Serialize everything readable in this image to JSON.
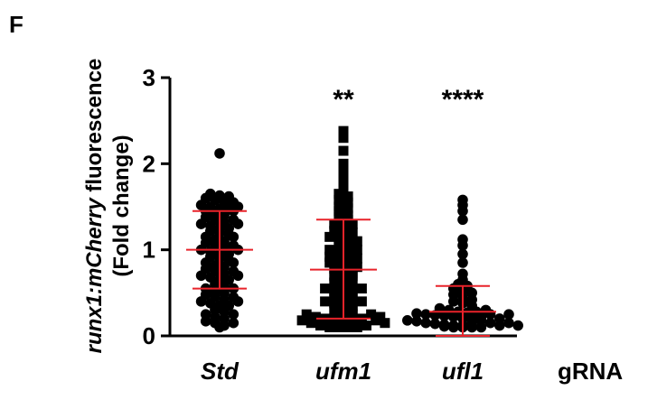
{
  "panel_label": "F",
  "chart_data": {
    "type": "scatter",
    "subtype": "dot-plot-with-mean-and-sd",
    "ylabel_italic": "runx1:mCherry",
    "ylabel_rest": " fluorescence",
    "ylabel_line2": "(Fold change)",
    "xlabel": "gRNA",
    "ylim": [
      0,
      3
    ],
    "yticks": [
      0,
      1,
      2,
      3
    ],
    "categories": [
      "Std",
      "ufm1",
      "ufl1"
    ],
    "significance": [
      "",
      "**",
      "****"
    ],
    "marker_shapes": [
      "circle",
      "square",
      "circle"
    ],
    "summary_color": "#e8232a",
    "groups": [
      {
        "name": "Std",
        "mean": 1.0,
        "sd_low": 0.55,
        "sd_high": 1.45,
        "points": [
          2.12,
          1.65,
          1.63,
          1.62,
          1.6,
          1.58,
          1.55,
          1.52,
          1.5,
          1.48,
          1.47,
          1.45,
          1.42,
          1.4,
          1.38,
          1.35,
          1.32,
          1.3,
          1.28,
          1.25,
          1.22,
          1.2,
          1.18,
          1.15,
          1.12,
          1.1,
          1.08,
          1.05,
          1.03,
          1.0,
          0.98,
          0.95,
          0.92,
          0.9,
          0.88,
          0.85,
          0.82,
          0.8,
          0.78,
          0.75,
          0.72,
          0.7,
          0.68,
          0.65,
          0.6,
          0.57,
          0.55,
          0.52,
          0.5,
          0.48,
          0.45,
          0.42,
          0.4,
          0.38,
          0.35,
          0.3,
          0.28,
          0.25,
          0.22,
          0.2,
          0.17,
          0.15,
          0.12,
          0.1,
          1.5,
          1.45,
          1.35,
          1.25,
          1.15,
          1.05,
          0.95,
          0.85,
          0.75,
          0.65,
          0.55,
          0.45,
          0.35,
          0.25,
          0.15,
          1.55,
          1.3,
          1.0,
          0.7,
          0.4
        ]
      },
      {
        "name": "ufm1",
        "mean": 0.77,
        "sd_low": 0.2,
        "sd_high": 1.35,
        "points": [
          2.38,
          2.3,
          2.15,
          2.0,
          1.95,
          1.88,
          1.8,
          1.72,
          1.65,
          1.62,
          1.58,
          1.55,
          1.5,
          1.48,
          1.45,
          1.4,
          1.38,
          1.35,
          1.3,
          1.28,
          1.22,
          1.18,
          1.15,
          1.12,
          1.1,
          1.05,
          1.02,
          1.0,
          0.98,
          0.95,
          0.92,
          0.9,
          0.88,
          0.85,
          0.82,
          0.8,
          0.78,
          0.75,
          0.72,
          0.7,
          0.65,
          0.62,
          0.6,
          0.55,
          0.52,
          0.5,
          0.45,
          0.42,
          0.4,
          0.38,
          0.35,
          0.3,
          0.28,
          0.25,
          0.22,
          0.2,
          0.18,
          0.15,
          0.12,
          0.1,
          0.1,
          0.12,
          0.15,
          0.18,
          0.2,
          0.22,
          0.25,
          0.3,
          0.35,
          0.4,
          0.45,
          0.5,
          0.55,
          0.6,
          0.7,
          0.8,
          0.9,
          1.0,
          1.1,
          1.2,
          1.3,
          0.15,
          0.2,
          0.1,
          0.12,
          0.25,
          0.18,
          0.22,
          0.15,
          0.1
        ]
      },
      {
        "name": "ufl1",
        "mean": 0.28,
        "sd_low": 0.0,
        "sd_high": 0.58,
        "points": [
          1.58,
          1.52,
          1.45,
          1.35,
          1.12,
          1.05,
          0.95,
          0.85,
          0.72,
          0.65,
          0.6,
          0.58,
          0.55,
          0.52,
          0.5,
          0.48,
          0.45,
          0.42,
          0.4,
          0.38,
          0.35,
          0.32,
          0.3,
          0.28,
          0.27,
          0.26,
          0.25,
          0.24,
          0.23,
          0.22,
          0.2,
          0.18,
          0.17,
          0.15,
          0.14,
          0.13,
          0.12,
          0.11,
          0.1,
          0.1,
          0.12,
          0.15,
          0.18,
          0.2,
          0.22,
          0.25,
          0.28,
          0.3,
          0.15,
          0.12,
          0.1,
          0.2,
          0.25,
          0.1,
          0.15,
          0.12
        ]
      }
    ]
  }
}
